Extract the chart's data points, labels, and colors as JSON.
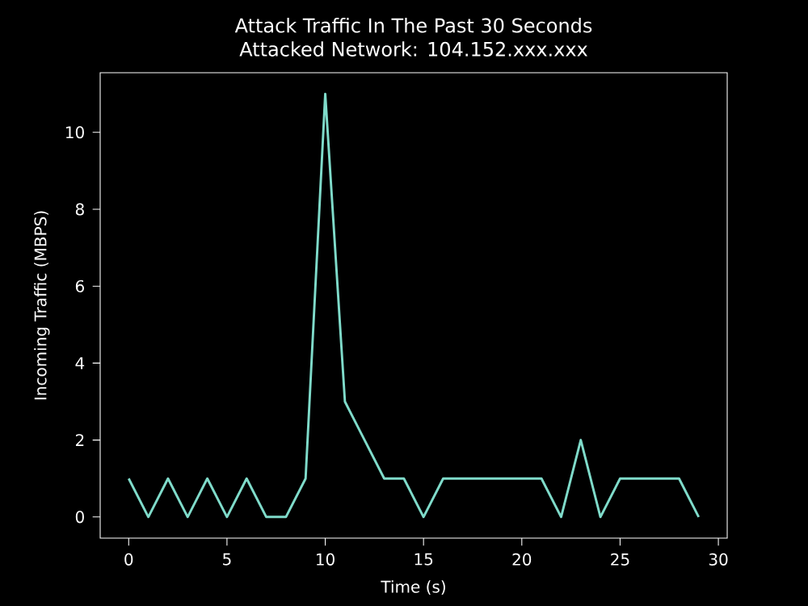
{
  "chart_data": {
    "type": "line",
    "title": "Attack Traffic In The Past 30 Seconds",
    "subtitle": "Attacked Network: 104.152.xxx.xxx",
    "xlabel": "Time (s)",
    "ylabel": "Incoming Traffic (MBPS)",
    "x": [
      0,
      1,
      2,
      3,
      4,
      5,
      6,
      7,
      8,
      9,
      10,
      11,
      12,
      13,
      14,
      15,
      16,
      17,
      18,
      19,
      20,
      21,
      22,
      23,
      24,
      25,
      26,
      27,
      28,
      29
    ],
    "series": [
      {
        "color": "#7fdbca",
        "values": [
          1,
          0,
          1,
          0,
          1,
          0,
          1,
          0,
          0,
          1,
          11,
          3,
          2,
          1,
          1,
          0,
          1,
          1,
          1,
          1,
          1,
          1,
          0,
          2,
          0,
          1,
          1,
          1,
          1,
          0
        ]
      }
    ],
    "xlim": [
      -1.45,
      30.45
    ],
    "ylim": [
      -0.55,
      11.55
    ],
    "xticks": [
      0,
      5,
      10,
      15,
      20,
      25,
      30
    ],
    "yticks": [
      0,
      2,
      4,
      6,
      8,
      10
    ],
    "grid": false,
    "marker": "none",
    "line_style": "solid"
  }
}
